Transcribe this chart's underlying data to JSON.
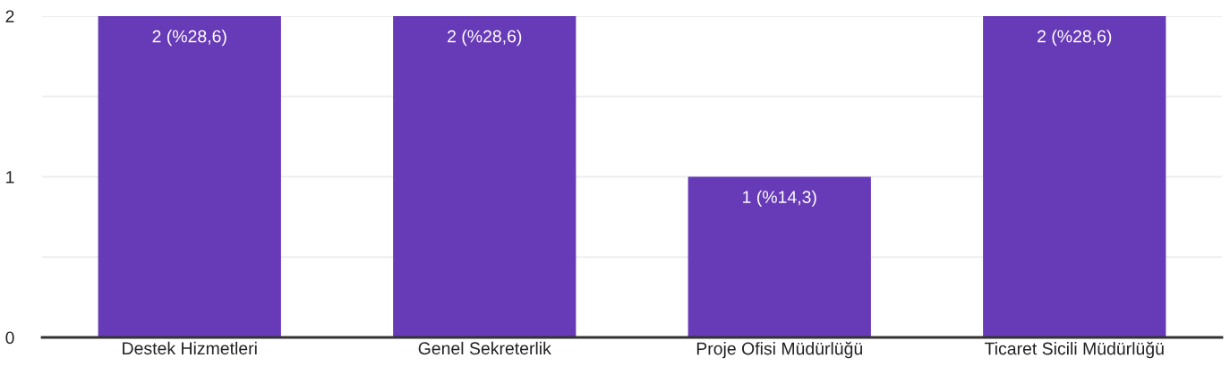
{
  "chart_data": {
    "type": "bar",
    "categories": [
      "Destek Hizmetleri",
      "Genel Sekreterlik",
      "Proje Ofisi Müdürlüğü",
      "Ticaret Sicili Müdürlüğü"
    ],
    "values": [
      2,
      2,
      1,
      2
    ],
    "color": "#673ab7",
    "value_labels": [
      "2 (%28,6)",
      "2 (%28,6)",
      "1 (%14,3)",
      "2 (%28,6)"
    ],
    "ylim": [
      0,
      2
    ],
    "yticks": [
      0,
      {
        "value": 0.5,
        "label": null
      },
      1,
      {
        "value": 1.5,
        "label": null
      },
      2
    ],
    "grid": "y",
    "legend": false
  }
}
